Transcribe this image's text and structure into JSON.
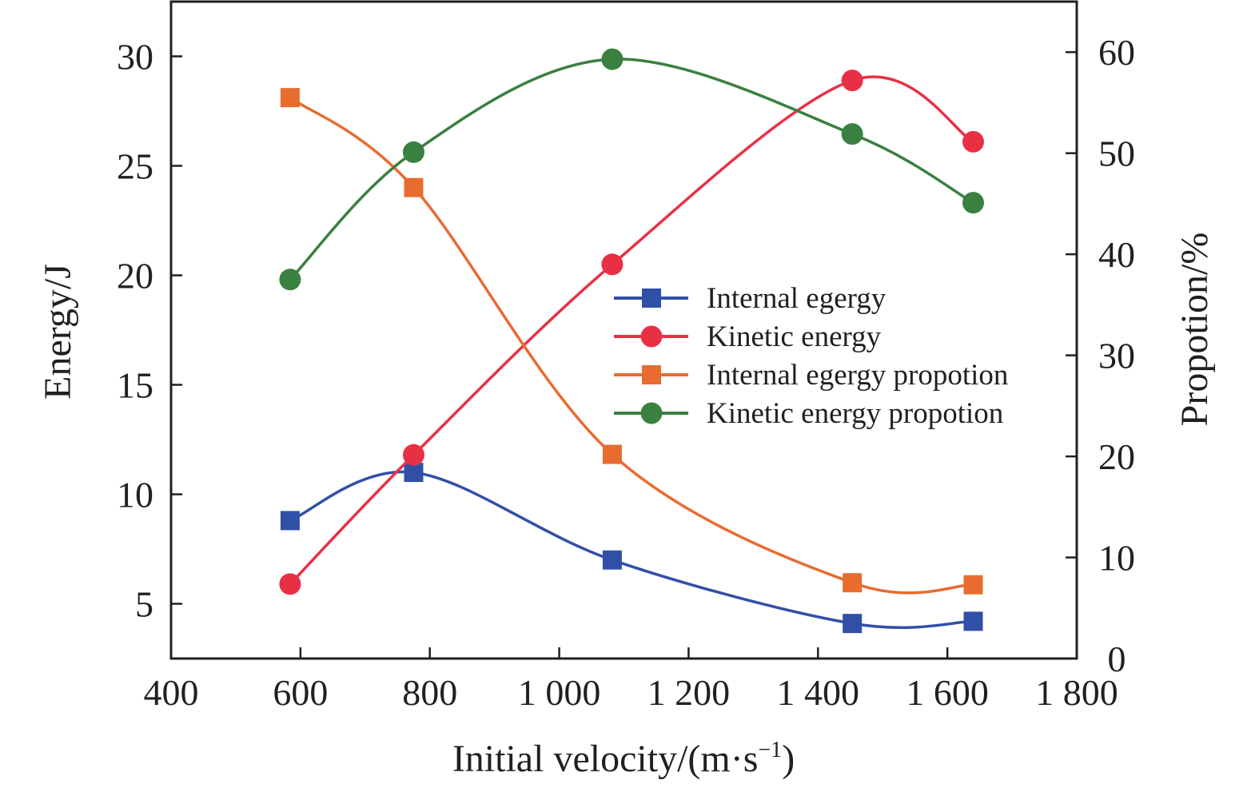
{
  "chart_data": {
    "type": "line",
    "title": "",
    "xlabel": "Initial velocity/(m·s",
    "xlabel_sup": "−1",
    "xlabel_end": ")",
    "ylabel": "Energy/J",
    "y2label": "Propotion/%",
    "xlim": [
      400,
      1800
    ],
    "ylim": [
      2.5,
      32.5
    ],
    "y2lim": [
      0,
      65
    ],
    "grid": false,
    "legend_position": "center-right",
    "x_ticks": [
      400,
      600,
      800,
      1000,
      1200,
      1400,
      1600,
      1800
    ],
    "x_tick_labels": [
      "400",
      "600",
      "800",
      "1 000",
      "1 200",
      "1 400",
      "1 600",
      "1 800"
    ],
    "y_ticks": [
      5,
      10,
      15,
      20,
      25,
      30
    ],
    "y_tick_labels": [
      "5",
      "10",
      "15",
      "20",
      "25",
      "30"
    ],
    "y2_ticks": [
      0,
      10,
      20,
      30,
      40,
      50,
      60
    ],
    "y2_tick_labels": [
      "0",
      "10",
      "20",
      "30",
      "40",
      "50",
      "60"
    ],
    "x": [
      584,
      775,
      1082,
      1453,
      1640
    ],
    "series": [
      {
        "name": "Internal egergy",
        "axis": "left",
        "marker": "square",
        "color": "#3050a8",
        "values": [
          8.8,
          11.0,
          7.0,
          4.1,
          4.2
        ]
      },
      {
        "name": "Kinetic energy",
        "axis": "left",
        "marker": "circle",
        "color": "#e83045",
        "values": [
          5.9,
          11.8,
          20.5,
          28.9,
          26.1
        ]
      },
      {
        "name": "Internal egergy propotion",
        "axis": "right",
        "marker": "square",
        "color": "#e86c30",
        "values": [
          55.5,
          46.6,
          20.2,
          7.5,
          7.3
        ]
      },
      {
        "name": "Kinetic energy propotion",
        "axis": "right",
        "marker": "circle",
        "color": "#3a8040",
        "values": [
          37.5,
          50.1,
          59.3,
          51.9,
          45.1
        ]
      }
    ]
  }
}
